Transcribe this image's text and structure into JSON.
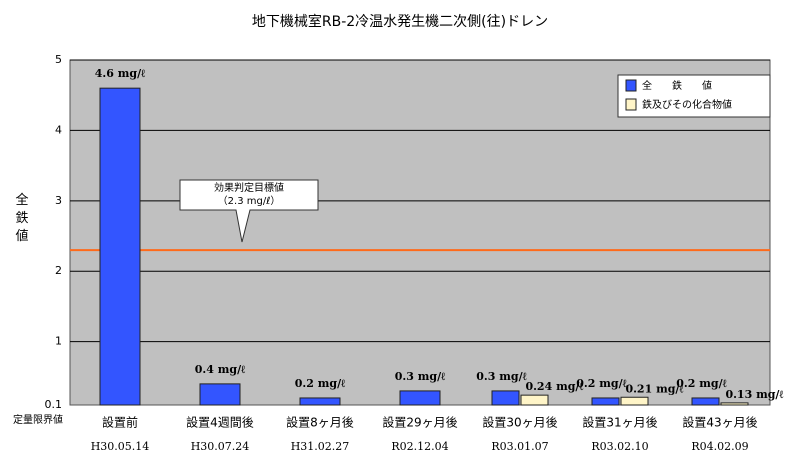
{
  "chart_data": {
    "type": "bar",
    "title": "地下機械室RB-2冷温水発生機二次側(往)ドレン",
    "y_label": "全鉄値",
    "y_floor_label": "定量限界値",
    "categories": [
      "設置前",
      "設置4週間後",
      "設置8ヶ月後",
      "設置29ヶ月後",
      "設置30ヶ月後",
      "設置31ヶ月後",
      "設置43ヶ月後"
    ],
    "category_dates": [
      "H30.05.14",
      "H30.07.24",
      "H31.02.27",
      "R02.12.04",
      "R03.01.07",
      "R03.02.10",
      "R04.02.09"
    ],
    "series": [
      {
        "name": "全　　鉄　　値",
        "color": "#3355ff",
        "values": [
          4.6,
          0.4,
          0.2,
          0.3,
          0.3,
          0.2,
          0.2
        ],
        "value_labels": [
          "4.6 mg/ℓ",
          "0.4 mg/ℓ",
          "0.2 mg/ℓ",
          "0.3 mg/ℓ",
          "0.3 mg/ℓ",
          "0.2 mg/ℓ",
          "0.2 mg/ℓ"
        ]
      },
      {
        "name": "鉄及びその化合物値",
        "color": "#fff5c8",
        "values": [
          null,
          null,
          null,
          null,
          0.24,
          0.21,
          0.13
        ],
        "value_labels": [
          null,
          null,
          null,
          null,
          "0.24 mg/ℓ",
          "0.21 mg/ℓ",
          "0.13 mg/ℓ"
        ]
      }
    ],
    "target": {
      "value": 2.3,
      "text": "効果判定目標値",
      "label": "（2.3 mg/ℓ）",
      "color": "#ff6a1a"
    },
    "ylim": [
      0.1,
      5
    ],
    "yticks": [
      0.1,
      1,
      2,
      3,
      4,
      5
    ],
    "grid": true,
    "legend": "top-right"
  }
}
